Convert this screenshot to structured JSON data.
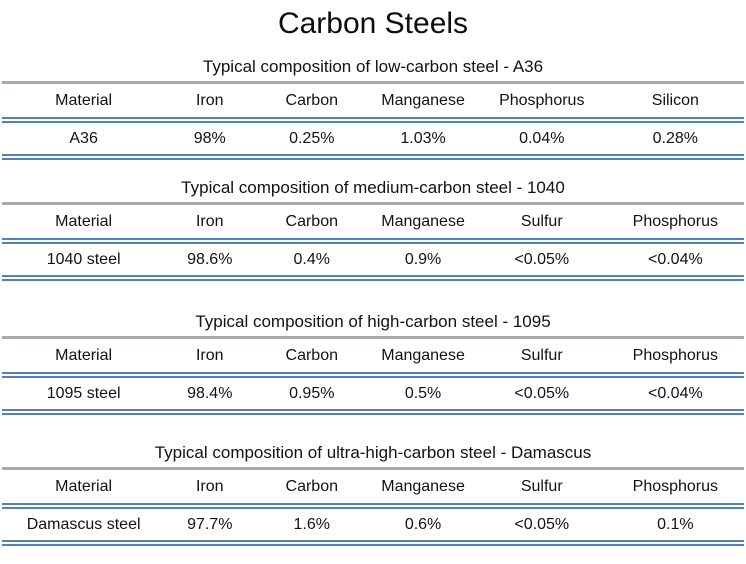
{
  "page": {
    "title": "Carbon Steels"
  },
  "colors": {
    "accent_double_line": "#4f81bd",
    "caption_rule_gray": "#a5aab2",
    "text": "#111111",
    "background": "#ffffff"
  },
  "tables": [
    {
      "caption": "Typical composition of low-carbon steel - A36",
      "columns": [
        "Material",
        "Iron",
        "Carbon",
        "Manganese",
        "Phosphorus",
        "Silicon"
      ],
      "rows": [
        [
          "A36",
          "98%",
          "0.25%",
          "1.03%",
          "0.04%",
          "0.28%"
        ]
      ]
    },
    {
      "caption": "Typical composition of medium-carbon steel - 1040",
      "columns": [
        "Material",
        "Iron",
        "Carbon",
        "Manganese",
        "Sulfur",
        "Phosphorus"
      ],
      "rows": [
        [
          "1040 steel",
          "98.6%",
          "0.4%",
          "0.9%",
          "<0.05%",
          "<0.04%"
        ]
      ]
    },
    {
      "caption": "Typical composition of high-carbon steel - 1095",
      "columns": [
        "Material",
        "Iron",
        "Carbon",
        "Manganese",
        "Sulfur",
        "Phosphorus"
      ],
      "rows": [
        [
          "1095 steel",
          "98.4%",
          "0.95%",
          "0.5%",
          "<0.05%",
          "<0.04%"
        ]
      ]
    },
    {
      "caption": "Typical composition of ultra-high-carbon steel - Damascus",
      "columns": [
        "Material",
        "Iron",
        "Carbon",
        "Manganese",
        "Sulfur",
        "Phosphorus"
      ],
      "rows": [
        [
          "Damascus steel",
          "97.7%",
          "1.6%",
          "0.6%",
          "<0.05%",
          "0.1%"
        ]
      ]
    }
  ]
}
